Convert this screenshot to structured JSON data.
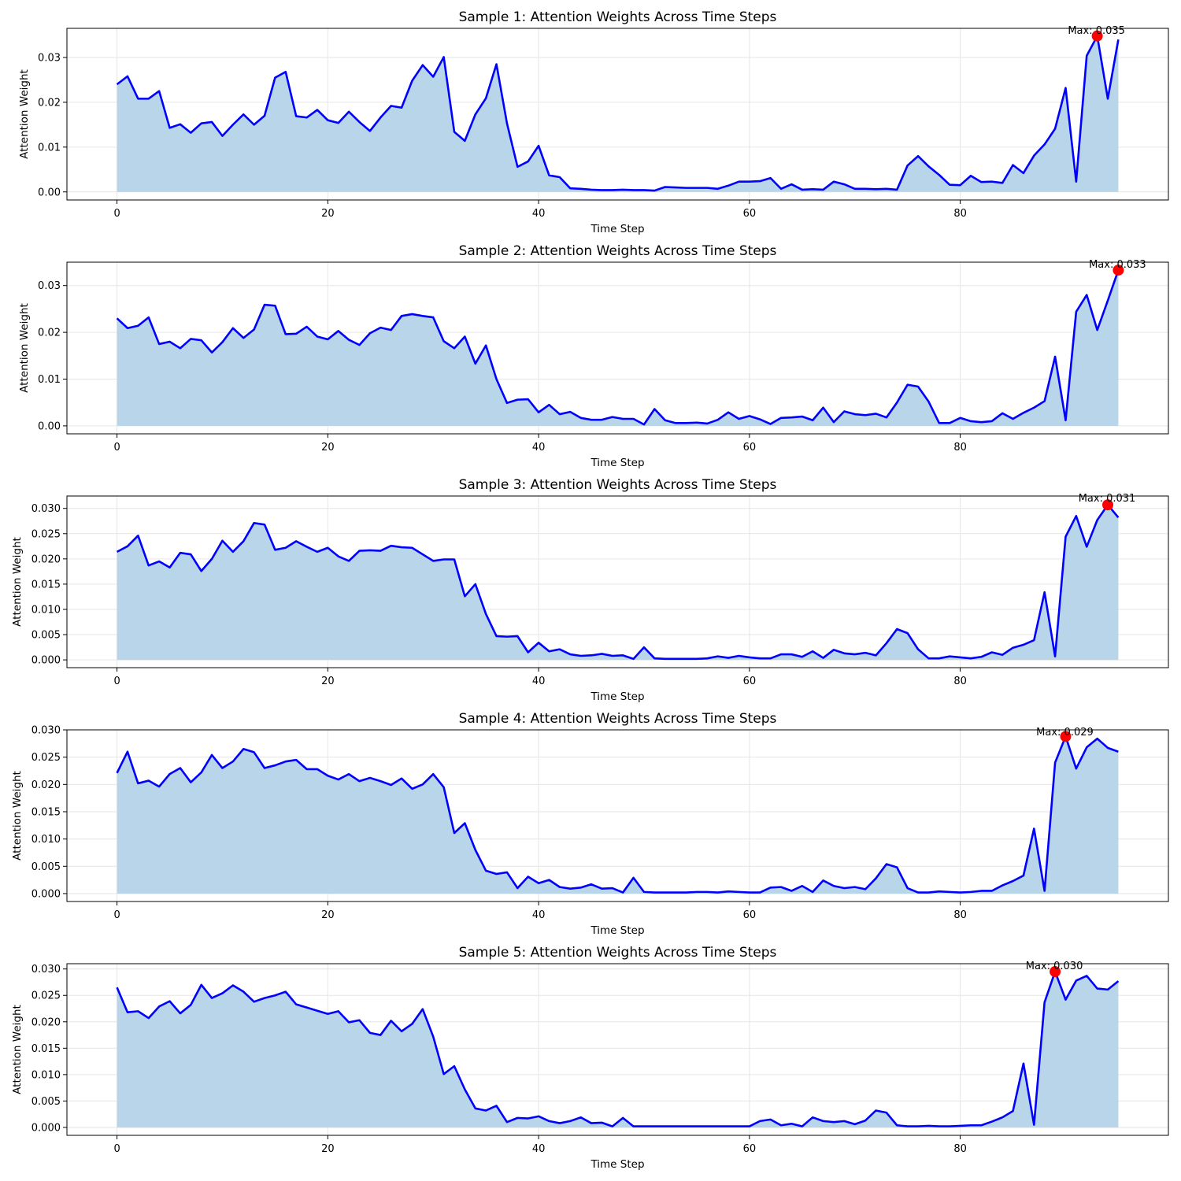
{
  "chart_data": [
    {
      "type": "area",
      "title": "Sample 1: Attention Weights Across Time Steps",
      "xlabel": "Time Step",
      "ylabel": "Attention Weight",
      "xlim": [
        -4.75,
        99.75
      ],
      "ylim": [
        -0.0018,
        0.0365
      ],
      "xticks": [
        0,
        20,
        40,
        60,
        80
      ],
      "xtick_labels": [
        "0",
        "20",
        "40",
        "60",
        "80"
      ],
      "yticks": [
        0,
        0.01,
        0.02,
        0.03
      ],
      "ytick_labels": [
        "0.00",
        "0.01",
        "0.02",
        "0.03"
      ],
      "grid": true,
      "line_color": "#0000ff",
      "fill_color": "#b9d5e9",
      "marker_color": "#ff0000",
      "max_label": "Max: 0.035",
      "max_index": 93,
      "values": [
        0.024,
        0.0258,
        0.0208,
        0.0208,
        0.0225,
        0.0143,
        0.0151,
        0.0132,
        0.0153,
        0.0156,
        0.0125,
        0.015,
        0.0173,
        0.015,
        0.017,
        0.0255,
        0.0268,
        0.0169,
        0.0166,
        0.0183,
        0.016,
        0.0154,
        0.0179,
        0.0156,
        0.0136,
        0.0166,
        0.0192,
        0.0188,
        0.0248,
        0.0283,
        0.0257,
        0.0301,
        0.0134,
        0.0114,
        0.0173,
        0.0209,
        0.0285,
        0.0153,
        0.0056,
        0.0068,
        0.0103,
        0.0037,
        0.0033,
        0.0008,
        0.0007,
        0.0005,
        0.0004,
        0.0004,
        0.0005,
        0.0004,
        0.0004,
        0.0003,
        0.0011,
        0.001,
        0.0009,
        0.0009,
        0.0009,
        0.0007,
        0.0014,
        0.0023,
        0.0023,
        0.0024,
        0.0031,
        0.0007,
        0.0017,
        0.0005,
        0.0006,
        0.0005,
        0.0023,
        0.0017,
        0.0007,
        0.0007,
        0.0006,
        0.0007,
        0.0005,
        0.0059,
        0.008,
        0.0057,
        0.0038,
        0.0016,
        0.0015,
        0.0036,
        0.0022,
        0.0023,
        0.002,
        0.006,
        0.0042,
        0.0081,
        0.0106,
        0.0141,
        0.0232,
        0.0023,
        0.0304,
        0.0348,
        0.0208,
        0.034
      ]
    },
    {
      "type": "area",
      "title": "Sample 2: Attention Weights Across Time Steps",
      "xlabel": "Time Step",
      "ylabel": "Attention Weight",
      "xlim": [
        -4.75,
        99.75
      ],
      "ylim": [
        -0.0017,
        0.035
      ],
      "xticks": [
        0,
        20,
        40,
        60,
        80
      ],
      "xtick_labels": [
        "0",
        "20",
        "40",
        "60",
        "80"
      ],
      "yticks": [
        0,
        0.01,
        0.02,
        0.03
      ],
      "ytick_labels": [
        "0.00",
        "0.01",
        "0.02",
        "0.03"
      ],
      "grid": true,
      "line_color": "#0000ff",
      "fill_color": "#b9d5e9",
      "marker_color": "#ff0000",
      "max_label": "Max: 0.033",
      "max_index": 95,
      "values": [
        0.023,
        0.0209,
        0.0214,
        0.0232,
        0.0175,
        0.018,
        0.0166,
        0.0186,
        0.0183,
        0.0157,
        0.0179,
        0.0209,
        0.0188,
        0.0206,
        0.0259,
        0.0257,
        0.0196,
        0.0197,
        0.0212,
        0.0191,
        0.0185,
        0.0203,
        0.0184,
        0.0173,
        0.0198,
        0.021,
        0.0205,
        0.0235,
        0.0239,
        0.0235,
        0.0232,
        0.0181,
        0.0166,
        0.0191,
        0.0133,
        0.0172,
        0.01,
        0.0049,
        0.0056,
        0.0057,
        0.0029,
        0.0045,
        0.0025,
        0.003,
        0.0017,
        0.0013,
        0.0013,
        0.0019,
        0.0015,
        0.0015,
        0.0003,
        0.0036,
        0.0012,
        0.0006,
        0.0006,
        0.0007,
        0.0005,
        0.0013,
        0.0029,
        0.0015,
        0.0021,
        0.0014,
        0.0004,
        0.0017,
        0.0018,
        0.002,
        0.0012,
        0.0039,
        0.0008,
        0.0031,
        0.0025,
        0.0023,
        0.0026,
        0.0018,
        0.005,
        0.0088,
        0.0084,
        0.0052,
        0.0006,
        0.0006,
        0.0017,
        0.001,
        0.0008,
        0.001,
        0.0027,
        0.0015,
        0.0028,
        0.0039,
        0.0053,
        0.0148,
        0.0012,
        0.0244,
        0.028,
        0.0205,
        0.0268,
        0.0333
      ]
    },
    {
      "type": "area",
      "title": "Sample 3: Attention Weights Across Time Steps",
      "xlabel": "Time Step",
      "ylabel": "Attention Weight",
      "xlim": [
        -4.75,
        99.75
      ],
      "ylim": [
        -0.00154,
        0.03245
      ],
      "xticks": [
        0,
        20,
        40,
        60,
        80
      ],
      "xtick_labels": [
        "0",
        "20",
        "40",
        "60",
        "80"
      ],
      "yticks": [
        0,
        0.005,
        0.01,
        0.015,
        0.02,
        0.025,
        0.03
      ],
      "ytick_labels": [
        "0.000",
        "0.005",
        "0.010",
        "0.015",
        "0.020",
        "0.025",
        "0.030"
      ],
      "grid": true,
      "line_color": "#0000ff",
      "fill_color": "#b9d5e9",
      "marker_color": "#ff0000",
      "max_label": "Max: 0.031",
      "max_index": 94,
      "values": [
        0.0214,
        0.0225,
        0.0246,
        0.0187,
        0.0195,
        0.0183,
        0.0212,
        0.0209,
        0.0176,
        0.02,
        0.0236,
        0.0214,
        0.0235,
        0.0271,
        0.0268,
        0.0218,
        0.0222,
        0.0235,
        0.0224,
        0.0214,
        0.0222,
        0.0205,
        0.0196,
        0.0216,
        0.0217,
        0.0216,
        0.0226,
        0.0223,
        0.0222,
        0.0209,
        0.0196,
        0.0199,
        0.0199,
        0.0126,
        0.015,
        0.0091,
        0.0047,
        0.0046,
        0.0047,
        0.0015,
        0.0034,
        0.0017,
        0.0021,
        0.0011,
        0.0008,
        0.0009,
        0.0012,
        0.0008,
        0.0009,
        0.0002,
        0.0025,
        0.0003,
        0.0002,
        0.0002,
        0.0002,
        0.0002,
        0.0003,
        0.0007,
        0.0004,
        0.0008,
        0.0005,
        0.0003,
        0.0003,
        0.0011,
        0.0011,
        0.0006,
        0.0017,
        0.0004,
        0.002,
        0.0013,
        0.0011,
        0.0014,
        0.0009,
        0.0033,
        0.0061,
        0.0053,
        0.0021,
        0.0003,
        0.0003,
        0.0007,
        0.0005,
        0.0003,
        0.0006,
        0.0015,
        0.001,
        0.0024,
        0.003,
        0.0039,
        0.0134,
        0.0007,
        0.0244,
        0.0285,
        0.0224,
        0.0277,
        0.0307,
        0.0282
      ]
    },
    {
      "type": "area",
      "title": "Sample 4: Attention Weights Across Time Steps",
      "xlabel": "Time Step",
      "ylabel": "Attention Weight",
      "xlim": [
        -4.75,
        99.75
      ],
      "ylim": [
        -0.00145,
        0.03
      ],
      "xticks": [
        0,
        20,
        40,
        60,
        80
      ],
      "xtick_labels": [
        "0",
        "20",
        "40",
        "60",
        "80"
      ],
      "yticks": [
        0,
        0.005,
        0.01,
        0.015,
        0.02,
        0.025,
        0.03
      ],
      "ytick_labels": [
        "0.000",
        "0.005",
        "0.010",
        "0.015",
        "0.020",
        "0.025",
        "0.030"
      ],
      "grid": true,
      "line_color": "#0000ff",
      "fill_color": "#b9d5e9",
      "marker_color": "#ff0000",
      "max_label": "Max: 0.029",
      "max_index": 90,
      "values": [
        0.0221,
        0.026,
        0.0202,
        0.0207,
        0.0196,
        0.0219,
        0.023,
        0.0204,
        0.0222,
        0.0254,
        0.023,
        0.0242,
        0.0265,
        0.0259,
        0.023,
        0.0235,
        0.0242,
        0.0245,
        0.0228,
        0.0228,
        0.0216,
        0.0209,
        0.0219,
        0.0206,
        0.0212,
        0.0206,
        0.0199,
        0.0211,
        0.0192,
        0.02,
        0.0219,
        0.0195,
        0.0111,
        0.0129,
        0.008,
        0.0042,
        0.0036,
        0.0039,
        0.001,
        0.0031,
        0.0019,
        0.0025,
        0.0012,
        0.0009,
        0.0011,
        0.0017,
        0.0009,
        0.001,
        0.0002,
        0.0029,
        0.0003,
        0.0002,
        0.0002,
        0.0002,
        0.0002,
        0.0003,
        0.0003,
        0.0002,
        0.0004,
        0.0003,
        0.0002,
        0.0002,
        0.0011,
        0.0012,
        0.0005,
        0.0014,
        0.0003,
        0.0024,
        0.0014,
        0.001,
        0.0012,
        0.0008,
        0.0028,
        0.0054,
        0.0048,
        0.001,
        0.0002,
        0.0002,
        0.0004,
        0.0003,
        0.0002,
        0.0003,
        0.0005,
        0.0005,
        0.0015,
        0.0023,
        0.0033,
        0.0119,
        0.0005,
        0.024,
        0.0288,
        0.0229,
        0.0268,
        0.0284,
        0.0267,
        0.026
      ]
    },
    {
      "type": "area",
      "title": "Sample 5: Attention Weights Across Time Steps",
      "xlabel": "Time Step",
      "ylabel": "Attention Weight",
      "xlim": [
        -4.75,
        99.75
      ],
      "ylim": [
        -0.0015,
        0.031
      ],
      "xticks": [
        0,
        20,
        40,
        60,
        80
      ],
      "xtick_labels": [
        "0",
        "20",
        "40",
        "60",
        "80"
      ],
      "yticks": [
        0,
        0.005,
        0.01,
        0.015,
        0.02,
        0.025,
        0.03
      ],
      "ytick_labels": [
        "0.000",
        "0.005",
        "0.010",
        "0.015",
        "0.020",
        "0.025",
        "0.030"
      ],
      "grid": true,
      "line_color": "#0000ff",
      "fill_color": "#b9d5e9",
      "marker_color": "#ff0000",
      "max_label": "Max: 0.030",
      "max_index": 89,
      "values": [
        0.0265,
        0.0218,
        0.022,
        0.0207,
        0.0229,
        0.0239,
        0.0216,
        0.0232,
        0.027,
        0.0245,
        0.0254,
        0.0269,
        0.0257,
        0.0238,
        0.0245,
        0.025,
        0.0257,
        0.0233,
        0.0227,
        0.0221,
        0.0215,
        0.022,
        0.0199,
        0.0203,
        0.0179,
        0.0175,
        0.0202,
        0.0182,
        0.0196,
        0.0224,
        0.0172,
        0.0101,
        0.0116,
        0.0072,
        0.0036,
        0.0032,
        0.0041,
        0.001,
        0.0018,
        0.0017,
        0.0021,
        0.0012,
        0.0008,
        0.0012,
        0.0019,
        0.0008,
        0.0009,
        0.0002,
        0.0018,
        0.0002,
        0.0002,
        0.0002,
        0.0002,
        0.0002,
        0.0002,
        0.0002,
        0.0002,
        0.0002,
        0.0002,
        0.0002,
        0.0002,
        0.0012,
        0.0015,
        0.0004,
        0.0007,
        0.0002,
        0.0019,
        0.0012,
        0.001,
        0.0012,
        0.0006,
        0.0013,
        0.0032,
        0.0028,
        0.0004,
        0.0002,
        0.0002,
        0.0003,
        0.0002,
        0.0002,
        0.0003,
        0.0004,
        0.0004,
        0.0011,
        0.0019,
        0.0031,
        0.0121,
        0.0005,
        0.0237,
        0.0295,
        0.0242,
        0.0278,
        0.0287,
        0.0263,
        0.0261,
        0.0277
      ]
    }
  ]
}
